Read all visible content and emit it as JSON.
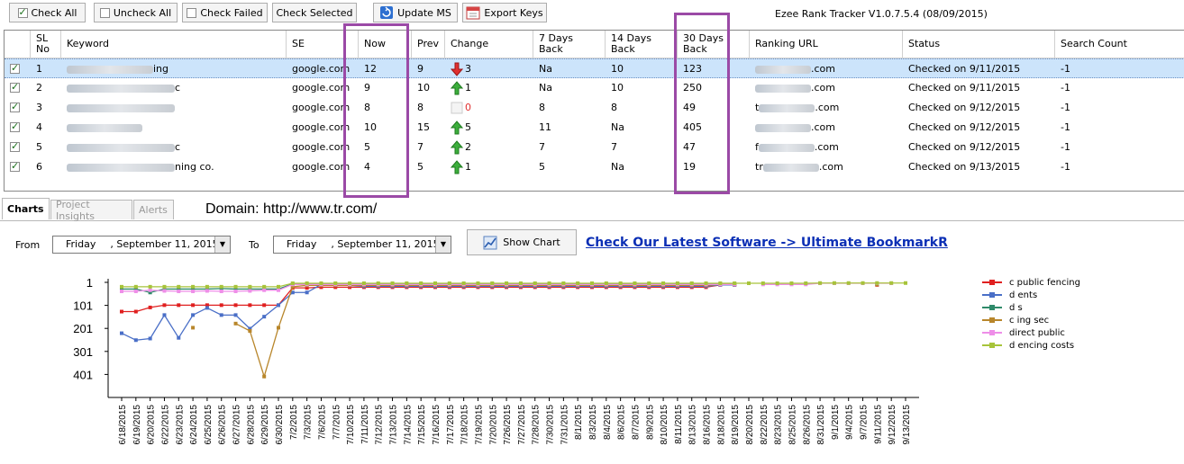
{
  "toolbar": {
    "check_all": "Check All",
    "uncheck_all": "Uncheck All",
    "check_failed": "Check Failed",
    "check_selected": "Check Selected",
    "update_ms": "Update MS",
    "export_keys": "Export Keys"
  },
  "app_title": "Ezee Rank Tracker V1.0.7.5.4 (08/09/2015)",
  "columns": {
    "sl": "SL No",
    "keyword": "Keyword",
    "se": "SE",
    "now": "Now",
    "prev": "Prev",
    "change": "Change",
    "d7": "7 Days Back",
    "d14": "14 Days Back",
    "d30": "30 Days Back",
    "url": "Ranking URL",
    "status": "Status",
    "count": "Search Count"
  },
  "rows": [
    {
      "sl": "1",
      "keyword": "ing",
      "se": "google.com",
      "now": "12",
      "prev": "9",
      "change": "3",
      "dir": "down",
      "d7": "Na",
      "d14": "10",
      "d30": "123",
      "url": ".com",
      "status": "Checked on 9/11/2015",
      "count": "-1"
    },
    {
      "sl": "2",
      "keyword": "c",
      "se": "google.com",
      "now": "9",
      "prev": "10",
      "change": "1",
      "dir": "up",
      "d7": "Na",
      "d14": "10",
      "d30": "250",
      "url": ".com",
      "status": "Checked on 9/11/2015",
      "count": "-1"
    },
    {
      "sl": "3",
      "keyword": "",
      "se": "google.com",
      "now": "8",
      "prev": "8",
      "change": "0",
      "dir": "none",
      "d7": "8",
      "d14": "8",
      "d30": "49",
      "url": "t.com",
      "status": "Checked on 9/12/2015",
      "count": "-1"
    },
    {
      "sl": "4",
      "keyword": "",
      "se": "google.com",
      "now": "10",
      "prev": "15",
      "change": "5",
      "dir": "up",
      "d7": "11",
      "d14": "Na",
      "d30": "405",
      "url": ".com",
      "status": "Checked on 9/12/2015",
      "count": "-1"
    },
    {
      "sl": "5",
      "keyword": "c",
      "se": "google.com",
      "now": "5",
      "prev": "7",
      "change": "2",
      "dir": "up",
      "d7": "7",
      "d14": "7",
      "d30": "47",
      "url": "f.com",
      "status": "Checked on 9/12/2015",
      "count": "-1"
    },
    {
      "sl": "6",
      "keyword": "ning co.",
      "se": "google.com",
      "now": "4",
      "prev": "5",
      "change": "1",
      "dir": "up",
      "d7": "5",
      "d14": "Na",
      "d30": "19",
      "url": "tr.com",
      "status": "Checked on 9/13/2015",
      "count": "-1"
    }
  ],
  "tabs": {
    "charts": "Charts",
    "insights": "Project Insights",
    "alerts": "Alerts"
  },
  "domain": "Domain: http://www.tr.com/",
  "from_label": "From",
  "to_label": "To",
  "from_day": "Friday",
  "from_date": ", September 11, 2015",
  "to_day": "Friday",
  "to_date": ", September 11, 2015",
  "show_chart": "Show Chart",
  "promo": "Check Our Latest Software -> Ultimate BookmarkR",
  "colors": {
    "red": "#e02020",
    "blue": "#4a6fc7",
    "green": "#2f8a6a",
    "brown": "#b8862b",
    "pink": "#ee8ee8",
    "lime": "#a7c43a",
    "highlight": "#9b4aa6"
  },
  "chart_data": {
    "type": "line",
    "y_ticks": [
      "1",
      "101",
      "201",
      "301",
      "401"
    ],
    "ylim": [
      1,
      501
    ],
    "y_inverted": true,
    "categories": [
      "6/18/2015",
      "6/19/2015",
      "6/20/2015",
      "6/22/2015",
      "6/23/2015",
      "6/24/2015",
      "6/25/2015",
      "6/26/2015",
      "6/27/2015",
      "6/28/2015",
      "6/29/2015",
      "6/30/2015",
      "7/2/2015",
      "7/3/2015",
      "7/6/2015",
      "7/7/2015",
      "7/10/2015",
      "7/11/2015",
      "7/12/2015",
      "7/13/2015",
      "7/14/2015",
      "7/15/2015",
      "7/16/2015",
      "7/17/2015",
      "7/18/2015",
      "7/19/2015",
      "7/20/2015",
      "7/26/2015",
      "7/27/2015",
      "7/28/2015",
      "7/30/2015",
      "7/31/2015",
      "8/1/2015",
      "8/3/2015",
      "8/4/2015",
      "8/6/2015",
      "8/7/2015",
      "8/9/2015",
      "8/10/2015",
      "8/11/2015",
      "8/13/2015",
      "8/16/2015",
      "8/18/2015",
      "8/19/2015",
      "8/20/2015",
      "8/22/2015",
      "8/23/2015",
      "8/25/2015",
      "8/26/2015",
      "8/31/2015",
      "9/1/2015",
      "9/4/2015",
      "9/7/2015",
      "9/11/2015",
      "9/12/2015",
      "9/13/2015"
    ],
    "series": [
      {
        "color": "#e02020",
        "values": [
          128,
          128,
          110,
          100,
          100,
          100,
          100,
          100,
          100,
          100,
          100,
          100,
          25,
          25,
          22,
          22,
          22,
          22,
          22,
          22,
          22,
          22,
          22,
          22,
          22,
          22,
          22,
          22,
          22,
          22,
          22,
          22,
          22,
          22,
          22,
          22,
          22,
          22,
          22,
          22,
          22,
          22,
          12,
          12,
          null,
          null,
          null,
          null,
          null,
          null,
          null,
          null,
          null,
          12,
          null,
          null
        ]
      },
      {
        "color": "#4a6fc7",
        "values": [
          222,
          252,
          245,
          143,
          242,
          143,
          112,
          143,
          143,
          202,
          150,
          100,
          45,
          45,
          10,
          12,
          14,
          18,
          18,
          18,
          18,
          18,
          18,
          18,
          18,
          18,
          18,
          18,
          18,
          18,
          18,
          18,
          18,
          18,
          18,
          18,
          18,
          18,
          18,
          18,
          18,
          18,
          12,
          12,
          null,
          null,
          null,
          null,
          null,
          null,
          null,
          null,
          null,
          9,
          null,
          null
        ]
      },
      {
        "color": "#2f8a6a",
        "values": [
          30,
          30,
          45,
          30,
          30,
          30,
          30,
          28,
          30,
          30,
          30,
          30,
          8,
          8,
          8,
          8,
          8,
          8,
          8,
          8,
          8,
          8,
          8,
          8,
          8,
          8,
          8,
          8,
          8,
          8,
          8,
          8,
          8,
          8,
          8,
          8,
          8,
          8,
          8,
          8,
          8,
          8,
          8,
          8,
          null,
          null,
          null,
          null,
          null,
          null,
          null,
          null,
          null,
          8,
          null,
          null
        ]
      },
      {
        "color": "#b8862b",
        "values": [
          null,
          null,
          null,
          null,
          null,
          198,
          null,
          null,
          180,
          212,
          410,
          198,
          20,
          14,
          14,
          14,
          14,
          14,
          14,
          14,
          14,
          14,
          14,
          14,
          14,
          14,
          14,
          14,
          14,
          14,
          14,
          14,
          14,
          14,
          14,
          14,
          14,
          14,
          14,
          14,
          14,
          14,
          10,
          10,
          null,
          null,
          null,
          null,
          null,
          null,
          null,
          null,
          null,
          10,
          null,
          null
        ]
      },
      {
        "color": "#ee8ee8",
        "values": [
          40,
          40,
          35,
          38,
          40,
          40,
          38,
          40,
          40,
          38,
          35,
          35,
          10,
          10,
          10,
          10,
          10,
          10,
          10,
          10,
          10,
          10,
          10,
          10,
          10,
          10,
          10,
          10,
          10,
          10,
          10,
          10,
          10,
          10,
          10,
          10,
          10,
          10,
          10,
          10,
          10,
          10,
          10,
          10,
          null,
          10,
          10,
          10,
          10,
          5,
          5,
          5,
          5,
          5,
          5,
          null
        ]
      },
      {
        "color": "#a7c43a",
        "values": [
          20,
          20,
          20,
          20,
          20,
          20,
          20,
          20,
          20,
          20,
          20,
          20,
          5,
          5,
          5,
          5,
          5,
          5,
          5,
          5,
          5,
          5,
          5,
          5,
          5,
          5,
          5,
          5,
          5,
          5,
          5,
          5,
          5,
          5,
          5,
          5,
          5,
          5,
          5,
          5,
          5,
          5,
          5,
          5,
          5,
          5,
          5,
          5,
          5,
          4,
          4,
          4,
          4,
          4,
          4,
          4
        ]
      }
    ]
  },
  "legend": [
    {
      "color": "#e02020",
      "label": "c   public fencing"
    },
    {
      "color": "#4a6fc7",
      "label": "d                        ents"
    },
    {
      "color": "#2f8a6a",
      "label": "d                    s"
    },
    {
      "color": "#b8862b",
      "label": "c              ing sec"
    },
    {
      "color": "#ee8ee8",
      "label": "direct public"
    },
    {
      "color": "#a7c43a",
      "label": "d              encing costs"
    }
  ]
}
